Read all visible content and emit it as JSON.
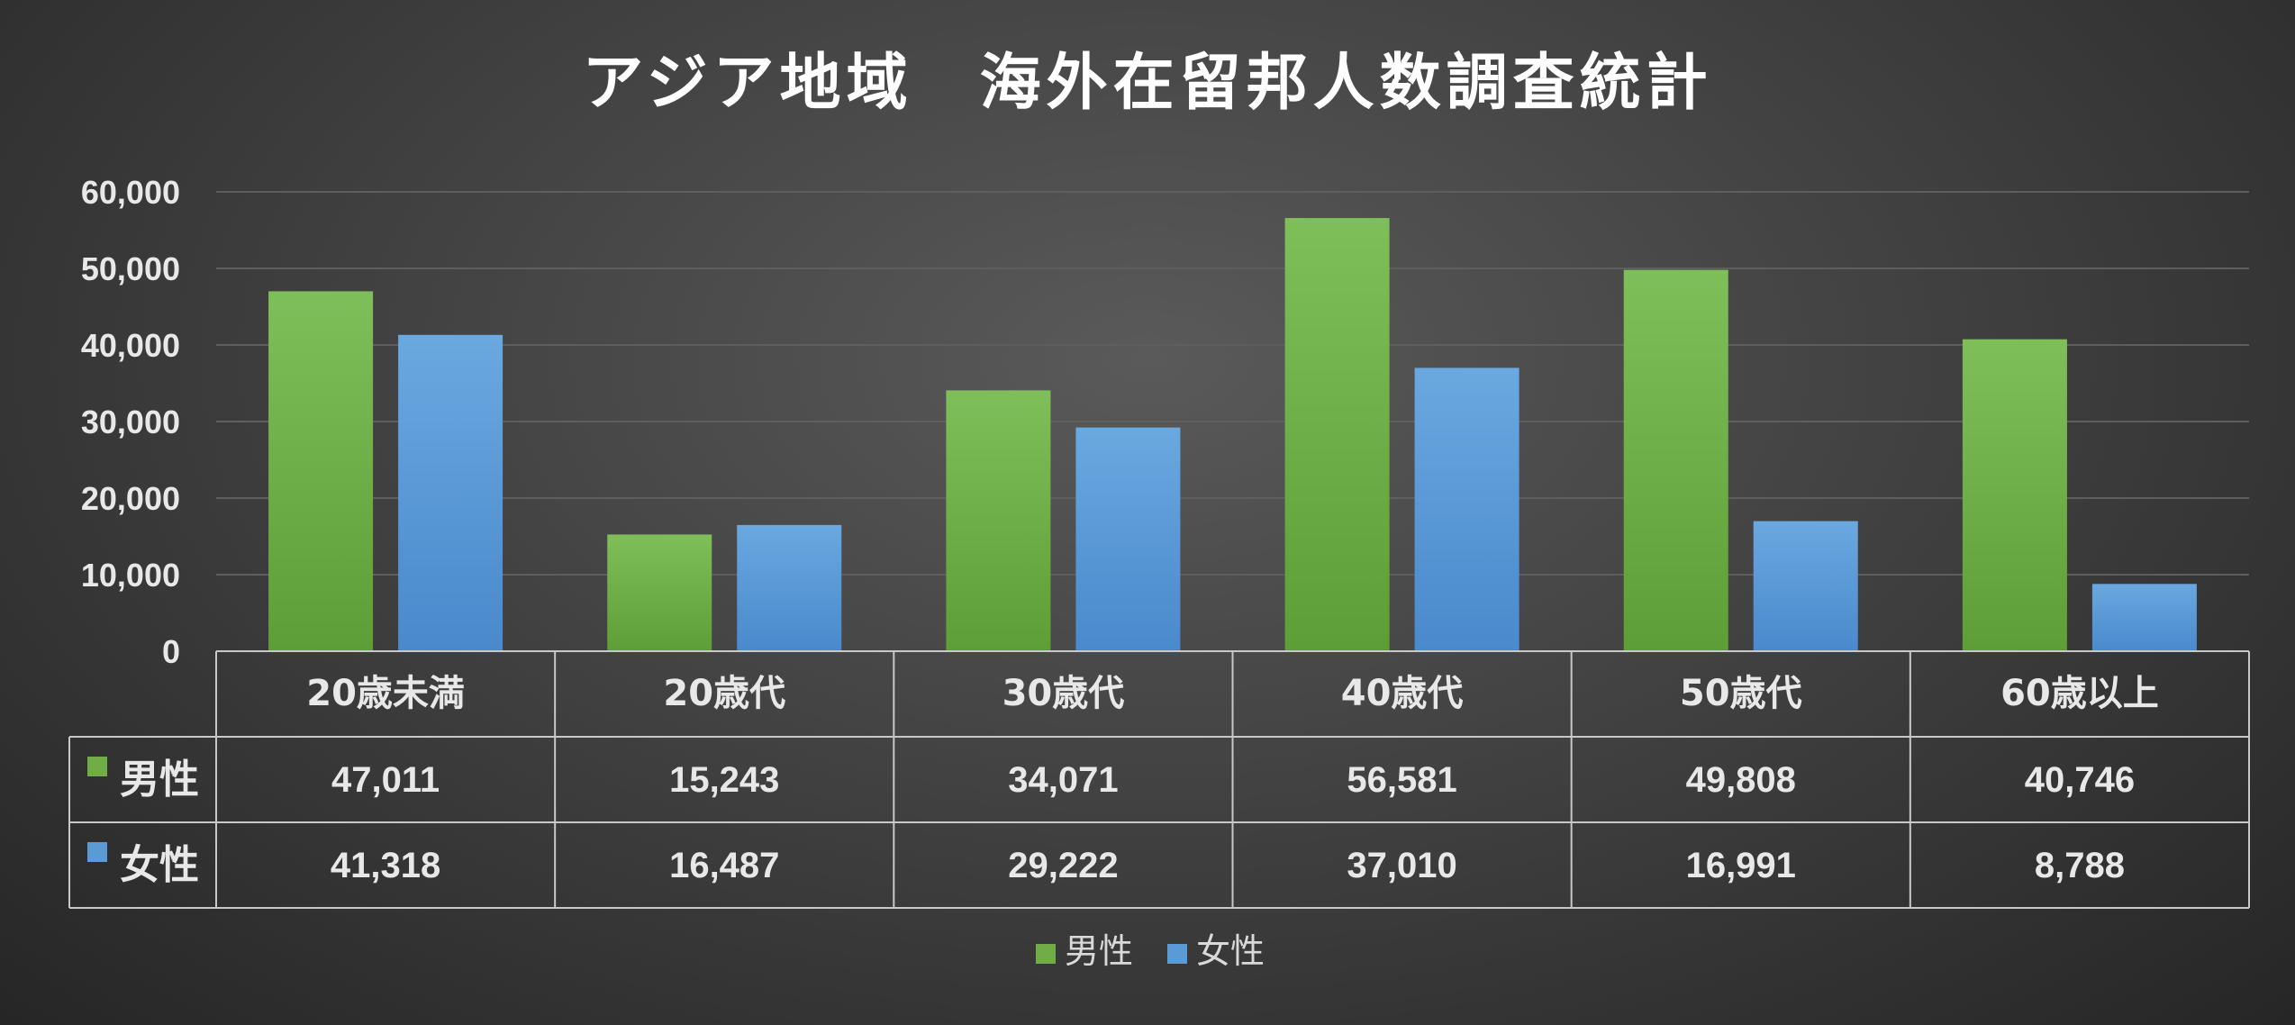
{
  "chart_data": {
    "type": "bar",
    "title": "アジア地域　海外在留邦人数調査統計",
    "categories": [
      "20歳未満",
      "20歳代",
      "30歳代",
      "40歳代",
      "50歳代",
      "60歳以上"
    ],
    "series": [
      {
        "name": "男性",
        "color": "#70ad47",
        "values": [
          47011,
          15243,
          34071,
          56581,
          49808,
          40746
        ],
        "labels": [
          "47,011",
          "15,243",
          "34,071",
          "56,581",
          "49,808",
          "40,746"
        ]
      },
      {
        "name": "女性",
        "color": "#5b9bd5",
        "values": [
          41318,
          16487,
          29222,
          37010,
          16991,
          8788
        ],
        "labels": [
          "41,318",
          "16,487",
          "29,222",
          "37,010",
          "16,991",
          "8,788"
        ]
      }
    ],
    "ylim": [
      0,
      60000
    ],
    "yticks": [
      "0",
      "10,000",
      "20,000",
      "30,000",
      "40,000",
      "50,000",
      "60,000"
    ],
    "grid": true,
    "data_table": true,
    "legend": "bottom"
  }
}
